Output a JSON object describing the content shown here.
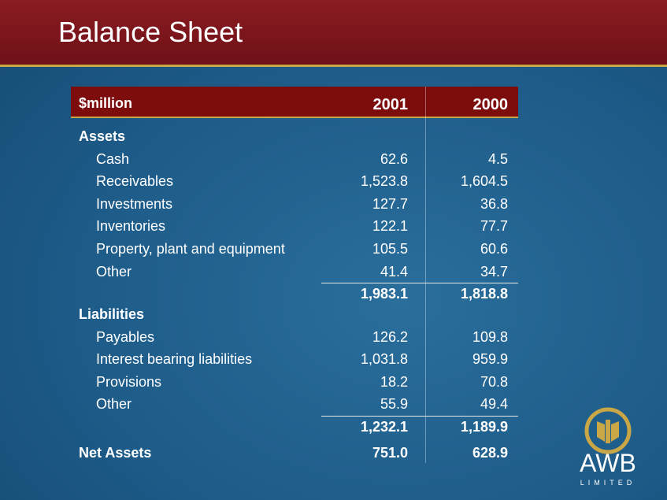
{
  "header": {
    "title": "Balance Sheet"
  },
  "table": {
    "columns": [
      "$million",
      "2001",
      "2000"
    ],
    "sections": [
      {
        "label": "Assets",
        "rows": [
          [
            "Cash",
            "62.6",
            "4.5"
          ],
          [
            "Receivables",
            "1,523.8",
            "1,604.5"
          ],
          [
            "Investments",
            "127.7",
            "36.8"
          ],
          [
            "Inventories",
            "122.1",
            "77.7"
          ],
          [
            "Property, plant and equipment",
            "105.5",
            "60.6"
          ],
          [
            "Other",
            "41.4",
            "34.7"
          ]
        ],
        "total": [
          "1,983.1",
          "1,818.8"
        ]
      },
      {
        "label": "Liabilities",
        "rows": [
          [
            "Payables",
            "126.2",
            "109.8"
          ],
          [
            "Interest bearing liabilities",
            "1,031.8",
            "959.9"
          ],
          [
            "Provisions",
            "18.2",
            "70.8"
          ],
          [
            "Other",
            "55.9",
            "49.4"
          ]
        ],
        "total": [
          "1,232.1",
          "1,189.9"
        ]
      }
    ],
    "net_assets": [
      "Net Assets",
      "751.0",
      "628.9"
    ]
  },
  "logo": {
    "name": "AWB",
    "subtitle": "LIMITED"
  }
}
